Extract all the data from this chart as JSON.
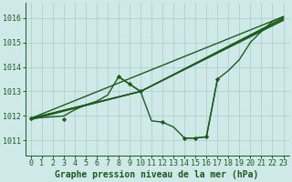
{
  "background_color": "#cfe8e8",
  "grid_color": "#b0d0d0",
  "line_color": "#1a5c1a",
  "xlabel": "Graphe pression niveau de la mer (hPa)",
  "xlabel_fontsize": 7,
  "tick_fontsize": 6,
  "xlim": [
    -0.5,
    23.5
  ],
  "ylim": [
    1010.4,
    1016.6
  ],
  "yticks": [
    1011,
    1012,
    1013,
    1014,
    1015,
    1016
  ],
  "xticks": [
    0,
    1,
    2,
    3,
    4,
    5,
    6,
    7,
    8,
    9,
    10,
    11,
    12,
    13,
    14,
    15,
    16,
    17,
    18,
    19,
    20,
    21,
    22,
    23
  ],
  "series_smooth1": {
    "x": [
      0,
      23
    ],
    "y": [
      1011.9,
      1016.05
    ]
  },
  "series_smooth2": {
    "x": [
      0,
      10,
      23
    ],
    "y": [
      1011.9,
      1013.0,
      1016.0
    ]
  },
  "series_smooth3": {
    "x": [
      0,
      10,
      23
    ],
    "y": [
      1011.9,
      1013.0,
      1015.95
    ]
  },
  "series_smooth4": {
    "x": [
      0,
      10,
      23
    ],
    "y": [
      1011.85,
      1013.0,
      1015.9
    ]
  },
  "series_marker": {
    "x": [
      0,
      1,
      2,
      3,
      4,
      5,
      6,
      7,
      8,
      9,
      10,
      11,
      12,
      13,
      14,
      15,
      16,
      17,
      18,
      19,
      20,
      21,
      22,
      23
    ],
    "y": [
      1011.9,
      null,
      null,
      1011.85,
      null,
      null,
      null,
      null,
      1013.6,
      1013.3,
      1013.0,
      null,
      1011.75,
      null,
      1011.1,
      1011.1,
      1011.15,
      1013.5,
      null,
      null,
      null,
      null,
      null,
      null
    ]
  },
  "series_jagged": {
    "x": [
      0,
      3,
      4,
      5,
      6,
      7,
      8,
      9,
      10,
      11,
      12,
      13,
      14,
      15,
      16,
      17,
      18,
      19,
      20,
      21,
      22,
      23
    ],
    "y": [
      1011.9,
      1012.0,
      1012.25,
      1012.45,
      1012.6,
      1012.85,
      1013.6,
      1013.3,
      1013.0,
      1011.8,
      1011.75,
      1011.55,
      1011.1,
      1011.1,
      1011.15,
      1013.5,
      1013.85,
      1014.3,
      1015.0,
      1015.45,
      1015.85,
      1016.05
    ]
  }
}
